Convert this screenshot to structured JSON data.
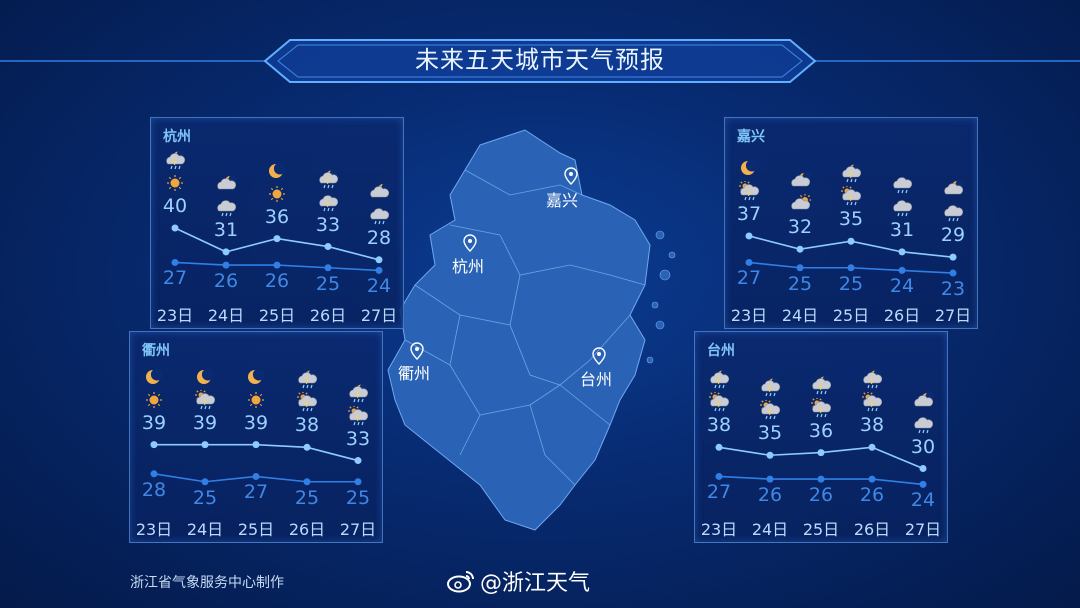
{
  "title": "未来五天城市天气预报",
  "map": {
    "cities": [
      {
        "name": "嘉兴"
      },
      {
        "name": "杭州"
      },
      {
        "name": "衢州"
      },
      {
        "name": "台州"
      }
    ]
  },
  "colors": {
    "high_line": "#8ecbff",
    "low_line": "#2f7fe6",
    "map_fill": "#2a63b6",
    "accent": "#4fa3ff"
  },
  "chart_data": [
    {
      "type": "line",
      "city": "杭州",
      "categories": [
        "23日",
        "24日",
        "25日",
        "26日",
        "27日"
      ],
      "series": [
        {
          "name": "high",
          "values": [
            40,
            31,
            36,
            33,
            28
          ]
        },
        {
          "name": "low",
          "values": [
            27,
            26,
            26,
            25,
            24
          ]
        }
      ],
      "icons_night": [
        "cloud-moon-thunder-rain",
        "cloud-moon",
        "clear-night",
        "cloud-moon-thunder-rain",
        "cloud-moon"
      ],
      "icons_day": [
        "sunny",
        "rain",
        "sunny",
        "thunder-rain",
        "rain"
      ]
    },
    {
      "type": "line",
      "city": "嘉兴",
      "categories": [
        "23日",
        "24日",
        "25日",
        "26日",
        "27日"
      ],
      "series": [
        {
          "name": "high",
          "values": [
            37,
            32,
            35,
            31,
            29
          ]
        },
        {
          "name": "low",
          "values": [
            27,
            25,
            25,
            24,
            23
          ]
        }
      ],
      "icons_night": [
        "clear-night",
        "cloud-moon",
        "cloud-moon-thunder-rain",
        "rain",
        "cloud-moon"
      ],
      "icons_day": [
        "sun-thunder-rain",
        "cloud-sun",
        "sun-thunder-rain",
        "rain",
        "rain"
      ]
    },
    {
      "type": "line",
      "city": "衢州",
      "categories": [
        "23日",
        "24日",
        "25日",
        "26日",
        "27日"
      ],
      "series": [
        {
          "name": "high",
          "values": [
            39,
            39,
            39,
            38,
            33
          ]
        },
        {
          "name": "low",
          "values": [
            28,
            25,
            27,
            25,
            25
          ]
        }
      ],
      "icons_night": [
        "clear-night",
        "clear-night",
        "clear-night",
        "cloud-moon-thunder-rain",
        "cloud-moon-thunder-rain"
      ],
      "icons_day": [
        "sunny",
        "sun-thunder-rain",
        "sunny",
        "sun-thunder-rain",
        "sun-thunder-rain"
      ]
    },
    {
      "type": "line",
      "city": "台州",
      "categories": [
        "23日",
        "24日",
        "25日",
        "26日",
        "27日"
      ],
      "series": [
        {
          "name": "high",
          "values": [
            38,
            35,
            36,
            38,
            30
          ]
        },
        {
          "name": "low",
          "values": [
            27,
            26,
            26,
            26,
            24
          ]
        }
      ],
      "icons_night": [
        "cloud-moon-thunder-rain",
        "cloud-moon-thunder-rain",
        "cloud-moon-thunder-rain",
        "cloud-moon-thunder-rain",
        "cloud-moon"
      ],
      "icons_day": [
        "sun-thunder-rain",
        "sun-thunder-rain",
        "sun-thunder-rain",
        "sun-thunder-rain",
        "rain"
      ]
    }
  ],
  "footer": {
    "credit": "浙江省气象服务中心制作",
    "weibo": "@浙江天气",
    "weibo_icon": "weibo-icon"
  }
}
